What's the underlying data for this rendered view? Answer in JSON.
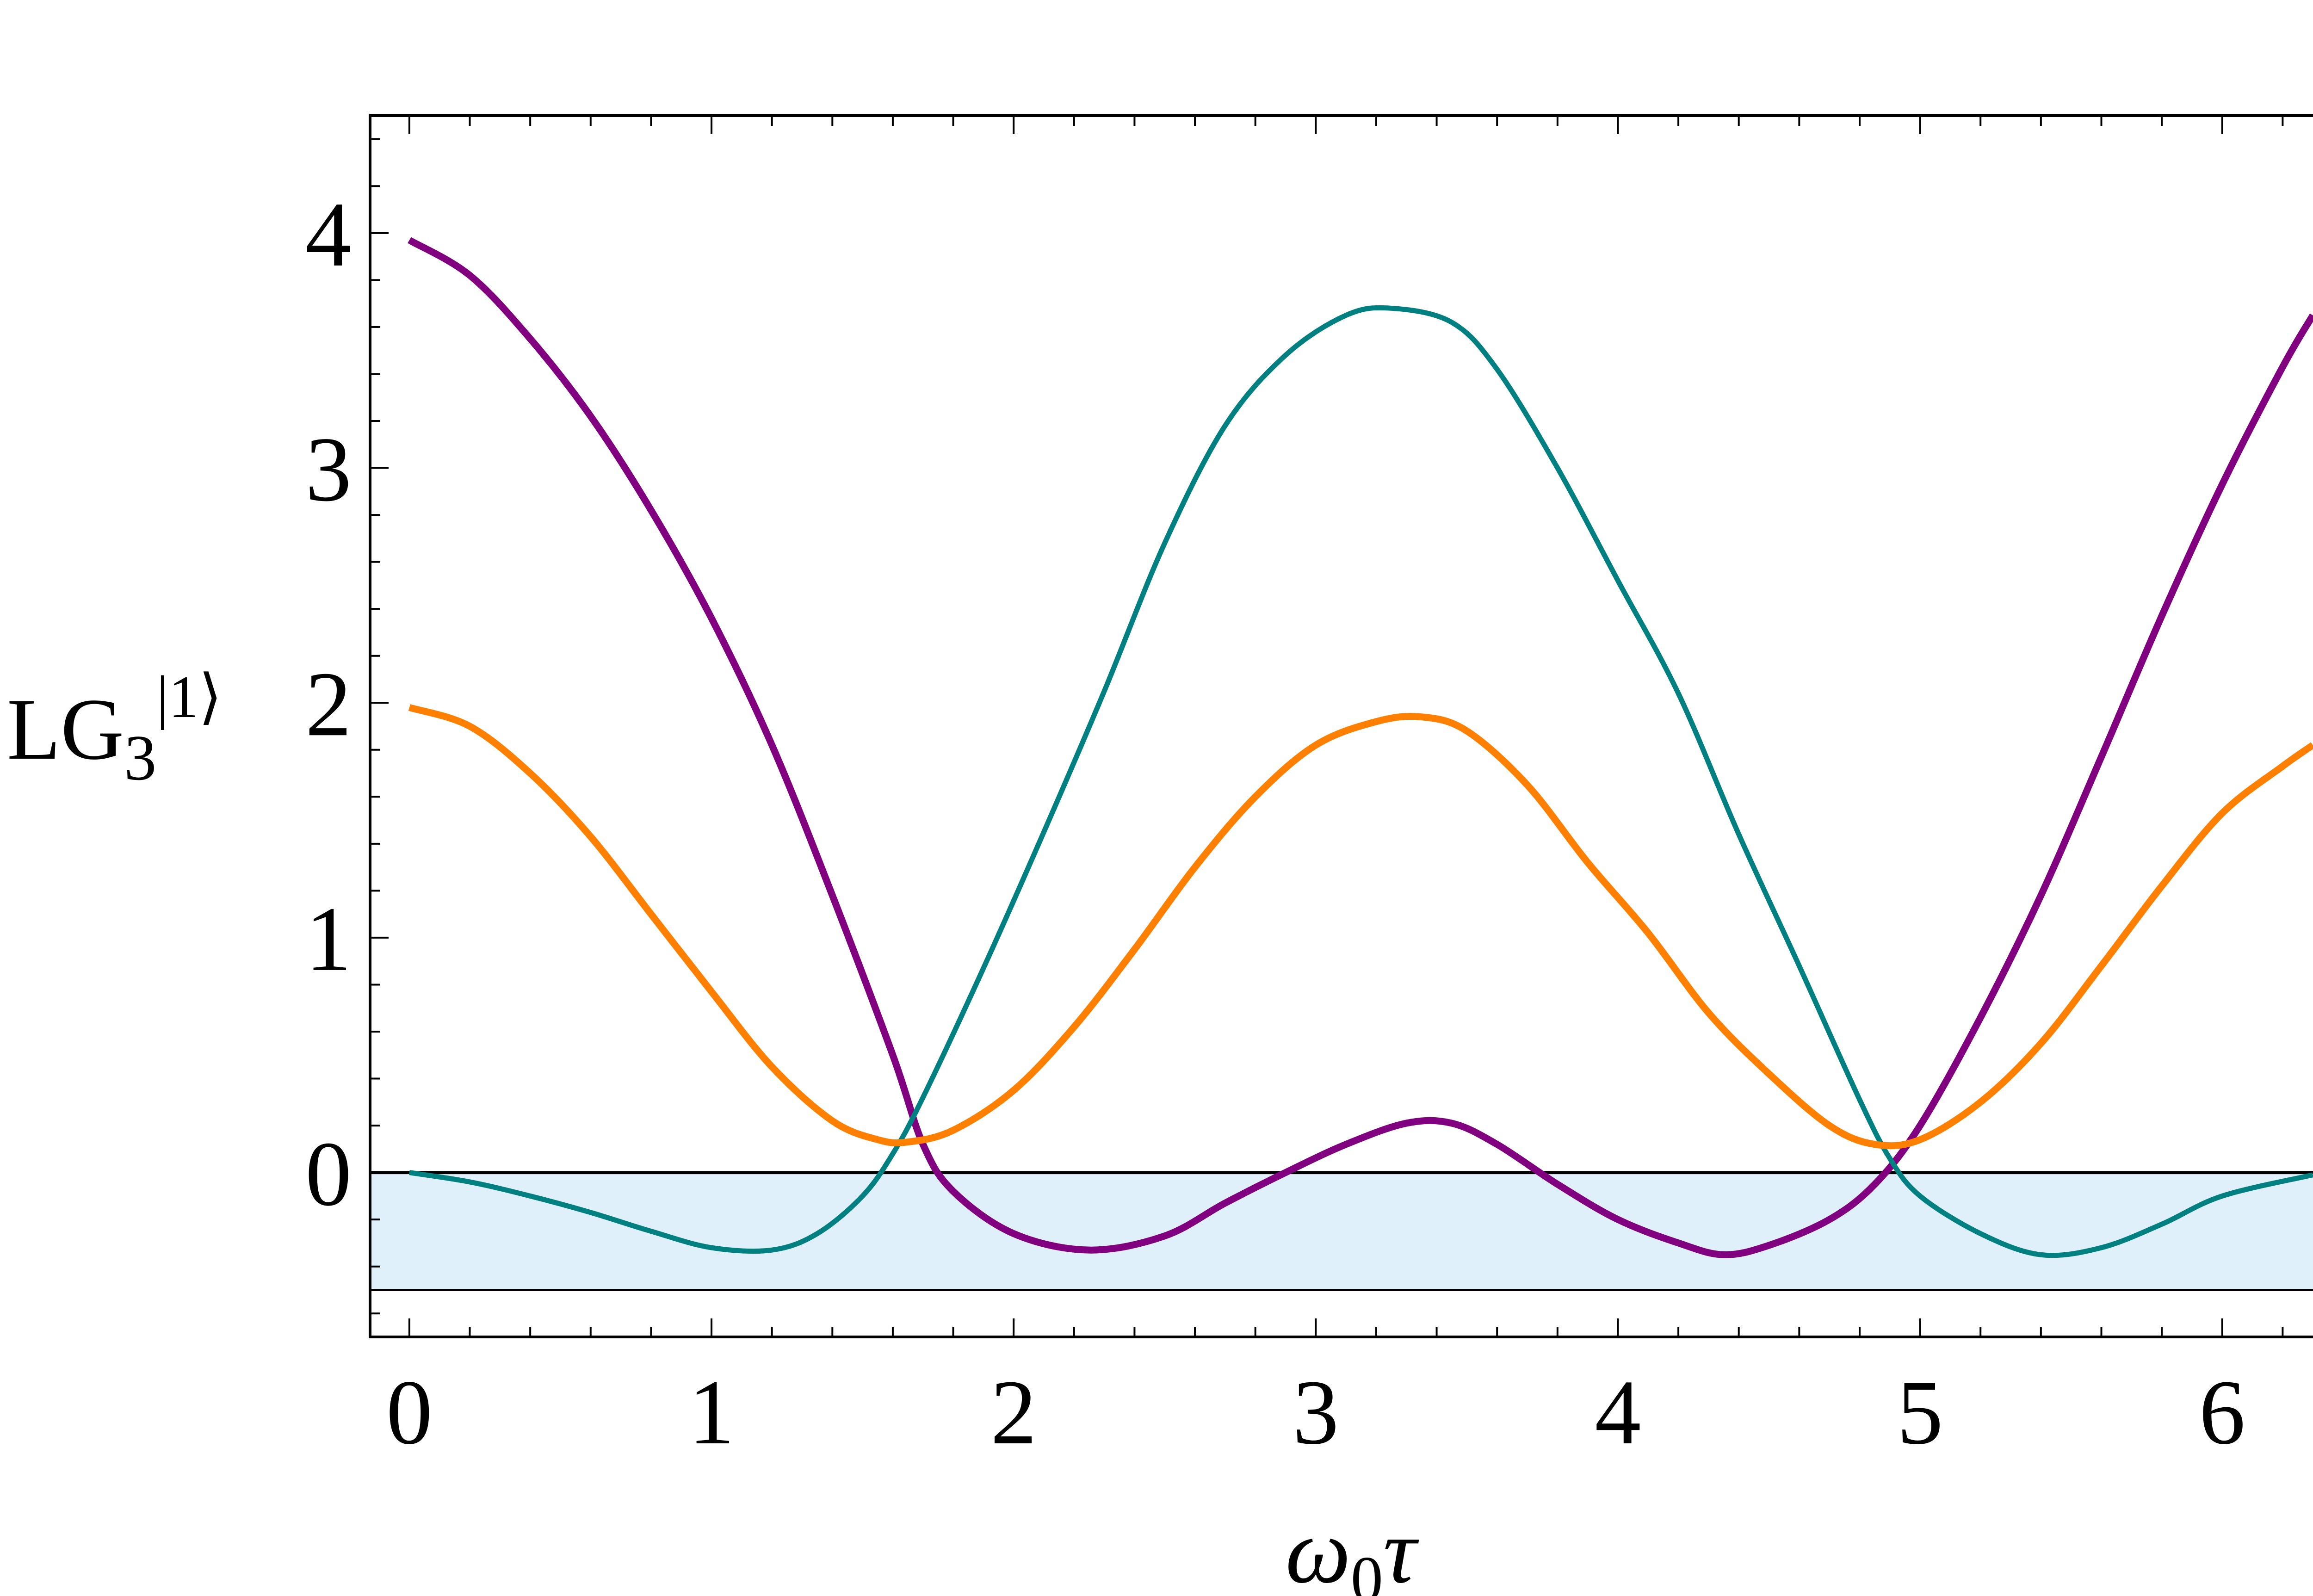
{
  "chart_data": {
    "type": "line",
    "xlabel": {
      "symbol": "ω",
      "subscript": "0",
      "tail": "τ"
    },
    "ylabel": {
      "base": "LG",
      "subscript": "3",
      "superscript": "|1⟩"
    },
    "xlim": [
      -0.13,
      6.4
    ],
    "ylim": [
      -0.7,
      4.5
    ],
    "x_ticks": [
      0,
      1,
      2,
      3,
      4,
      5,
      6
    ],
    "y_ticks": [
      0,
      1,
      2,
      3,
      4
    ],
    "grid": false,
    "shaded_band": {
      "y_from": -0.5,
      "y_to": 0,
      "color": "#dff0fb"
    },
    "reference_lines": [
      0,
      -0.5
    ],
    "series": [
      {
        "color": "#800080",
        "points": [
          [
            0,
            3.97
          ],
          [
            0.2,
            3.82
          ],
          [
            0.4,
            3.55
          ],
          [
            0.6,
            3.22
          ],
          [
            0.8,
            2.82
          ],
          [
            1.0,
            2.36
          ],
          [
            1.2,
            1.82
          ],
          [
            1.4,
            1.18
          ],
          [
            1.6,
            0.5
          ],
          [
            1.7,
            0.12
          ],
          [
            1.8,
            -0.08
          ],
          [
            2.0,
            -0.26
          ],
          [
            2.25,
            -0.33
          ],
          [
            2.5,
            -0.27
          ],
          [
            2.7,
            -0.13
          ],
          [
            2.9,
            0.0
          ],
          [
            3.1,
            0.12
          ],
          [
            3.3,
            0.21
          ],
          [
            3.45,
            0.21
          ],
          [
            3.6,
            0.12
          ],
          [
            3.8,
            -0.05
          ],
          [
            4.0,
            -0.2
          ],
          [
            4.2,
            -0.3
          ],
          [
            4.35,
            -0.35
          ],
          [
            4.5,
            -0.31
          ],
          [
            4.7,
            -0.2
          ],
          [
            4.85,
            -0.05
          ],
          [
            5.0,
            0.2
          ],
          [
            5.2,
            0.66
          ],
          [
            5.4,
            1.18
          ],
          [
            5.6,
            1.77
          ],
          [
            5.8,
            2.37
          ],
          [
            6.0,
            2.93
          ],
          [
            6.2,
            3.43
          ],
          [
            6.3,
            3.65
          ]
        ]
      },
      {
        "color": "#008080",
        "points": [
          [
            0,
            0.0
          ],
          [
            0.2,
            -0.04
          ],
          [
            0.4,
            -0.1
          ],
          [
            0.6,
            -0.17
          ],
          [
            0.8,
            -0.25
          ],
          [
            1.0,
            -0.32
          ],
          [
            1.2,
            -0.33
          ],
          [
            1.35,
            -0.26
          ],
          [
            1.5,
            -0.1
          ],
          [
            1.6,
            0.08
          ],
          [
            1.7,
            0.32
          ],
          [
            1.9,
            0.87
          ],
          [
            2.1,
            1.45
          ],
          [
            2.3,
            2.05
          ],
          [
            2.5,
            2.68
          ],
          [
            2.7,
            3.18
          ],
          [
            2.9,
            3.48
          ],
          [
            3.1,
            3.65
          ],
          [
            3.25,
            3.68
          ],
          [
            3.45,
            3.62
          ],
          [
            3.6,
            3.42
          ],
          [
            3.8,
            3.0
          ],
          [
            4.0,
            2.52
          ],
          [
            4.2,
            2.04
          ],
          [
            4.4,
            1.44
          ],
          [
            4.6,
            0.88
          ],
          [
            4.8,
            0.31
          ],
          [
            4.9,
            0.06
          ],
          [
            5.0,
            -0.1
          ],
          [
            5.2,
            -0.26
          ],
          [
            5.4,
            -0.35
          ],
          [
            5.6,
            -0.32
          ],
          [
            5.8,
            -0.22
          ],
          [
            6.0,
            -0.1
          ],
          [
            6.3,
            -0.01
          ]
        ]
      },
      {
        "color": "#ff8000",
        "points": [
          [
            0,
            1.98
          ],
          [
            0.2,
            1.9
          ],
          [
            0.4,
            1.7
          ],
          [
            0.6,
            1.43
          ],
          [
            0.8,
            1.1
          ],
          [
            1.0,
            0.77
          ],
          [
            1.2,
            0.45
          ],
          [
            1.4,
            0.22
          ],
          [
            1.55,
            0.14
          ],
          [
            1.65,
            0.13
          ],
          [
            1.8,
            0.18
          ],
          [
            2.0,
            0.35
          ],
          [
            2.2,
            0.62
          ],
          [
            2.4,
            0.95
          ],
          [
            2.6,
            1.3
          ],
          [
            2.8,
            1.6
          ],
          [
            3.0,
            1.82
          ],
          [
            3.2,
            1.92
          ],
          [
            3.35,
            1.94
          ],
          [
            3.5,
            1.88
          ],
          [
            3.7,
            1.65
          ],
          [
            3.9,
            1.32
          ],
          [
            4.1,
            1.02
          ],
          [
            4.3,
            0.68
          ],
          [
            4.5,
            0.42
          ],
          [
            4.7,
            0.2
          ],
          [
            4.85,
            0.12
          ],
          [
            5.0,
            0.14
          ],
          [
            5.2,
            0.3
          ],
          [
            5.4,
            0.55
          ],
          [
            5.6,
            0.88
          ],
          [
            5.8,
            1.22
          ],
          [
            6.0,
            1.53
          ],
          [
            6.2,
            1.73
          ],
          [
            6.3,
            1.82
          ]
        ]
      }
    ]
  }
}
